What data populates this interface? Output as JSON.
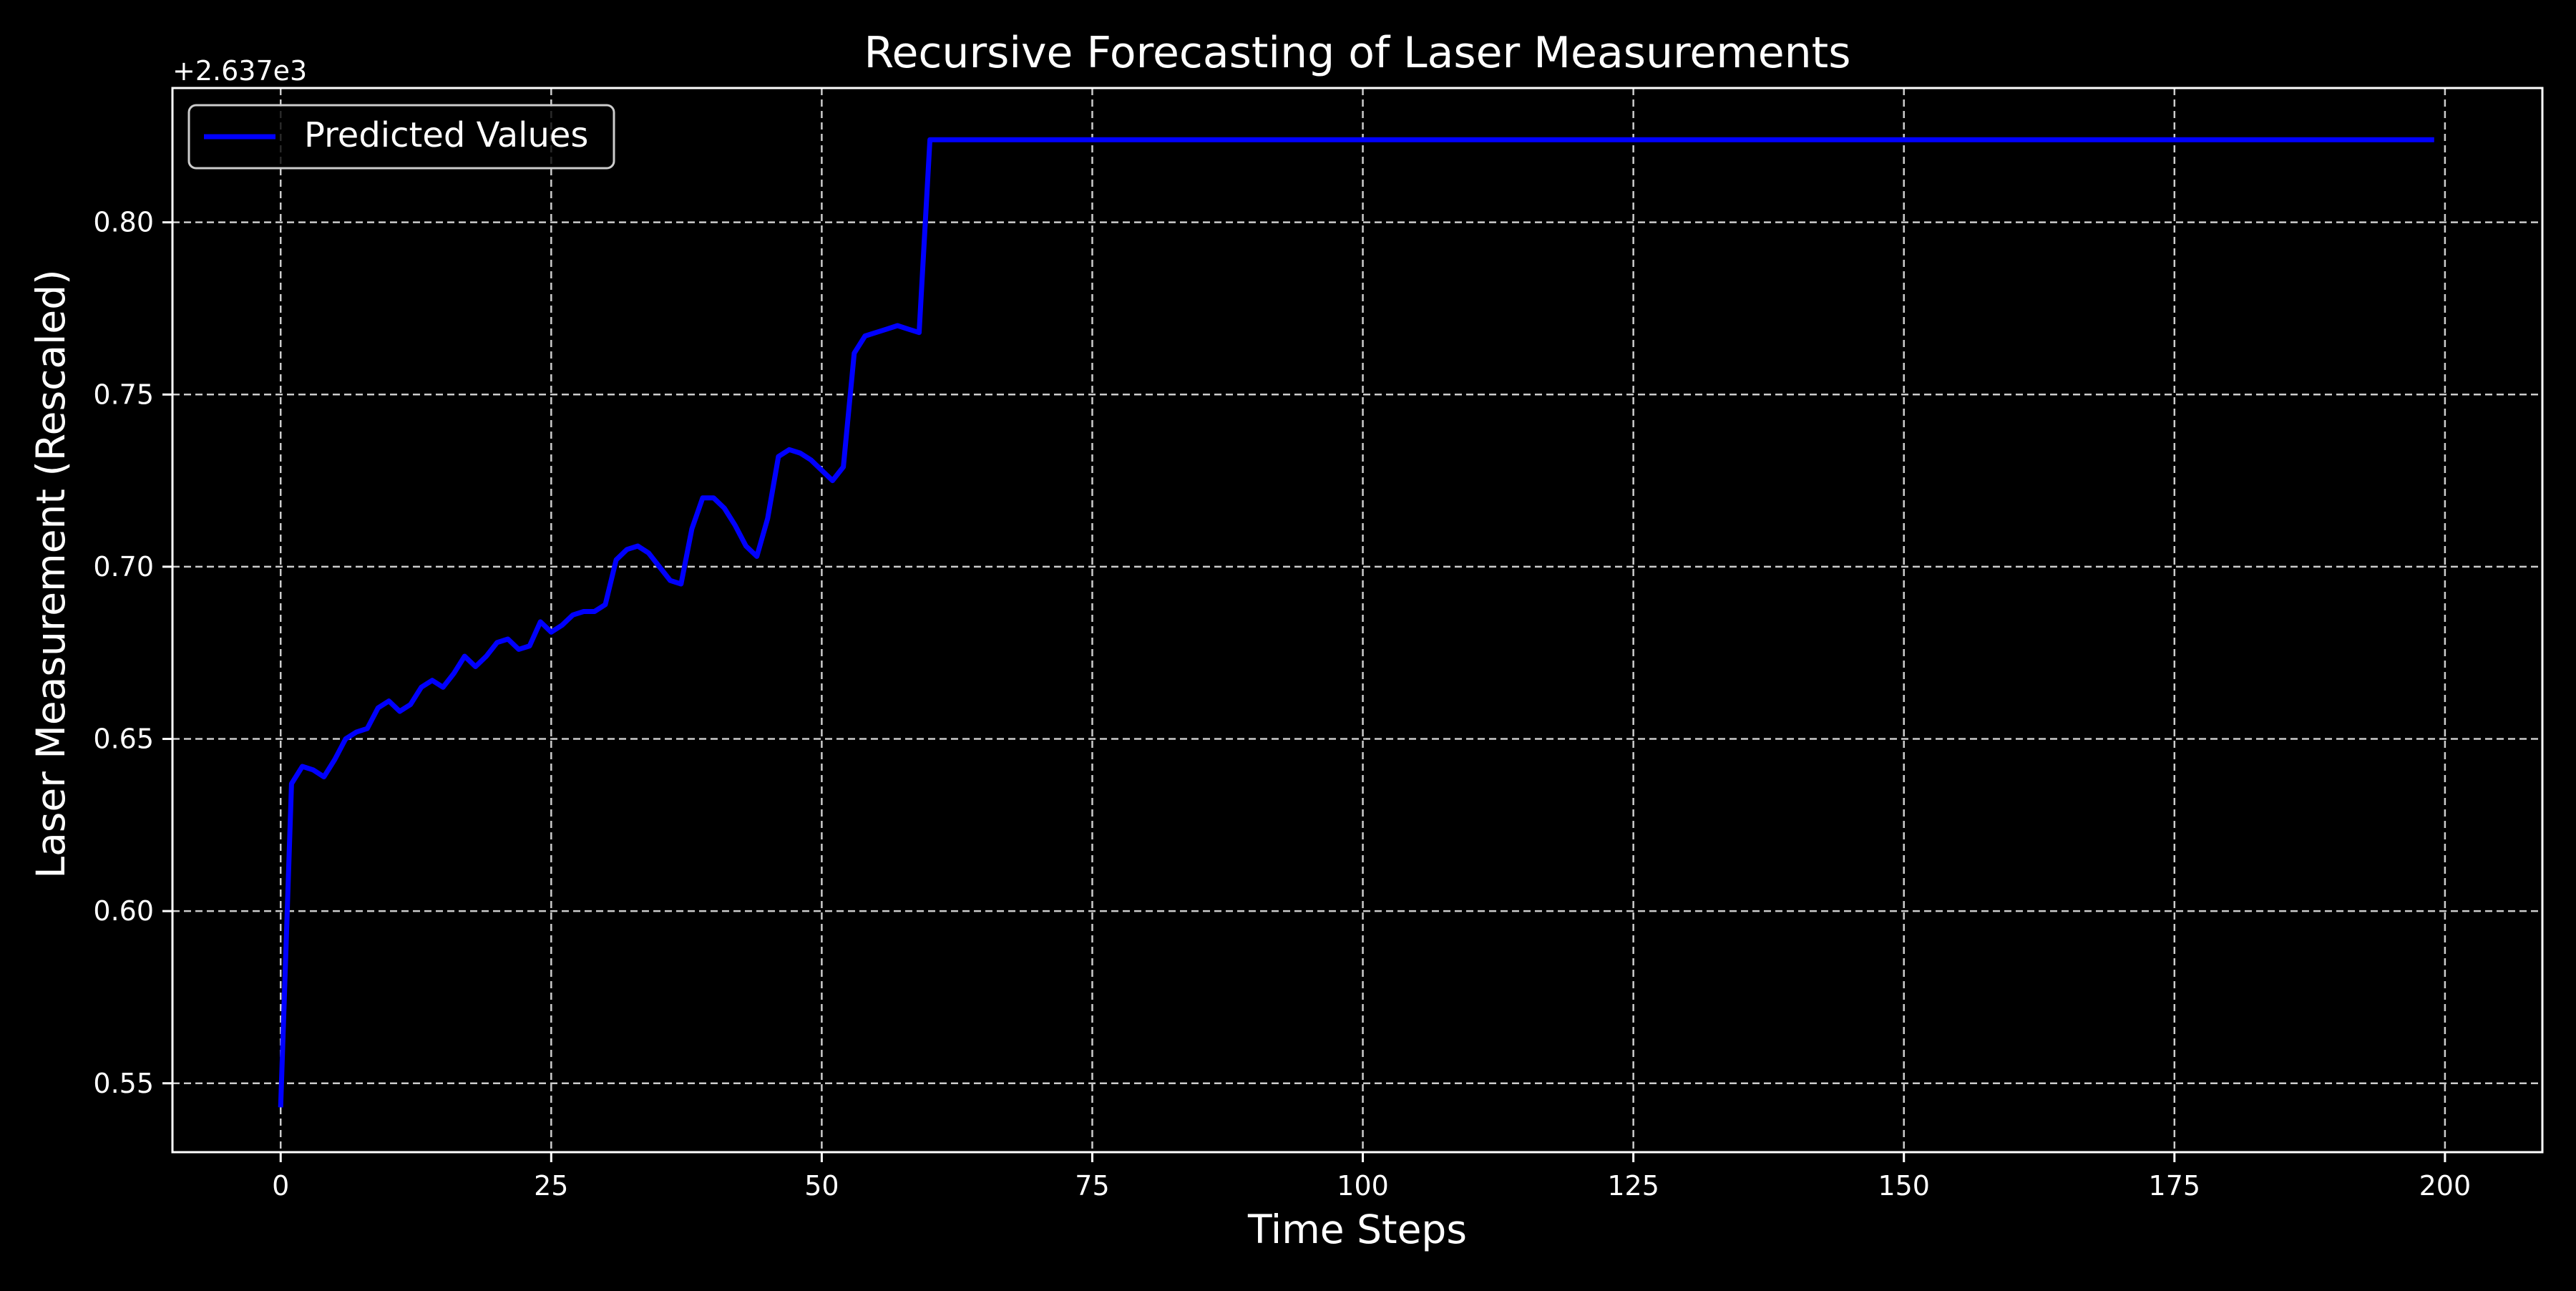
{
  "chart_data": {
    "type": "line",
    "title": "Recursive Forecasting of Laser Measurements",
    "xlabel": "Time Steps",
    "ylabel": "Laser Measurement (Rescaled)",
    "y_offset_label": "+2.637e3",
    "xlim": [
      -10,
      209
    ],
    "ylim": [
      0.53,
      0.839
    ],
    "xticks": [
      0,
      25,
      50,
      75,
      100,
      125,
      150,
      175,
      200
    ],
    "xtick_labels": [
      "0",
      "25",
      "50",
      "75",
      "100",
      "125",
      "150",
      "175",
      "200"
    ],
    "yticks": [
      0.55,
      0.6,
      0.65,
      0.7,
      0.75,
      0.8
    ],
    "ytick_labels": [
      "0.55",
      "0.60",
      "0.65",
      "0.70",
      "0.75",
      "0.80"
    ],
    "grid": true,
    "legend": {
      "position": "top-left",
      "entries": [
        "Predicted Values"
      ]
    },
    "series": [
      {
        "name": "Predicted Values",
        "color": "#0000ff",
        "x": [
          0,
          1,
          2,
          3,
          4,
          5,
          6,
          7,
          8,
          9,
          10,
          11,
          12,
          13,
          14,
          15,
          16,
          17,
          18,
          19,
          20,
          21,
          22,
          23,
          24,
          25,
          26,
          27,
          28,
          29,
          30,
          31,
          32,
          33,
          34,
          35,
          36,
          37,
          38,
          39,
          40,
          41,
          42,
          43,
          44,
          45,
          46,
          47,
          48,
          49,
          50,
          51,
          52,
          53,
          54,
          55,
          56,
          57,
          58,
          59,
          60,
          199
        ],
        "y": [
          0.543,
          0.637,
          0.642,
          0.641,
          0.639,
          0.644,
          0.65,
          0.652,
          0.653,
          0.659,
          0.661,
          0.658,
          0.66,
          0.665,
          0.667,
          0.665,
          0.669,
          0.674,
          0.671,
          0.674,
          0.678,
          0.679,
          0.676,
          0.677,
          0.684,
          0.681,
          0.683,
          0.686,
          0.687,
          0.687,
          0.689,
          0.702,
          0.705,
          0.706,
          0.704,
          0.7,
          0.696,
          0.695,
          0.711,
          0.72,
          0.72,
          0.717,
          0.712,
          0.706,
          0.703,
          0.714,
          0.732,
          0.734,
          0.733,
          0.731,
          0.728,
          0.725,
          0.729,
          0.762,
          0.767,
          0.768,
          0.769,
          0.77,
          0.769,
          0.768,
          0.824,
          0.824
        ]
      }
    ]
  },
  "colors": {
    "background": "#000000",
    "foreground": "#ffffff",
    "grid": "#cccccc",
    "line": "#0000ff"
  }
}
